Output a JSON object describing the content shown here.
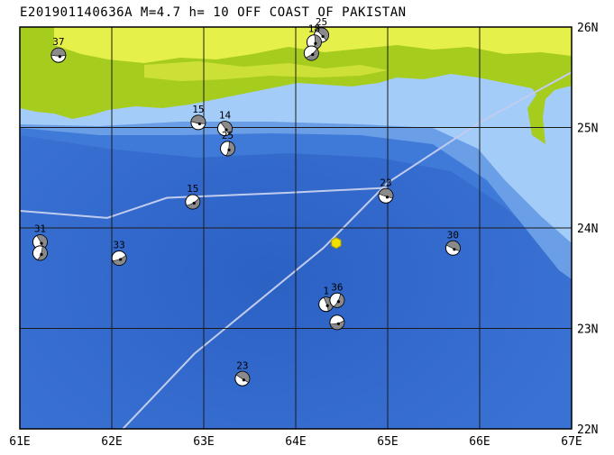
{
  "title": "E201901140636A M=4.7 h= 10 OFF COAST OF PAKISTAN",
  "extent": {
    "lon_min": 61,
    "lon_max": 67,
    "lat_min": 22,
    "lat_max": 26
  },
  "lon_ticks": [
    {
      "value": 61,
      "label": "61E"
    },
    {
      "value": 62,
      "label": "62E"
    },
    {
      "value": 63,
      "label": "63E"
    },
    {
      "value": 64,
      "label": "64E"
    },
    {
      "value": 65,
      "label": "65E"
    },
    {
      "value": 66,
      "label": "66E"
    },
    {
      "value": 67,
      "label": "67E"
    }
  ],
  "lat_ticks": [
    {
      "value": 26,
      "label": "26N"
    },
    {
      "value": 25,
      "label": "25N"
    },
    {
      "value": 24,
      "label": "24N"
    },
    {
      "value": 23,
      "label": "23N"
    },
    {
      "value": 22,
      "label": "22N"
    }
  ],
  "colors": {
    "deep_ocean": "#2d64c8",
    "ocean_mid": "#3f7ad8",
    "shelf": "#6a9ee6",
    "shallow": "#a4ccf8",
    "land_low": "#a6cc1e",
    "land_high": "#e6f04a",
    "grid": "#1a1a1a",
    "plate_boundary": "#c0ccee",
    "epicenter": "#f2e000"
  },
  "epicenter": {
    "lon": 64.44,
    "lat": 23.85,
    "icon": "hexagon-icon"
  },
  "plate_boundary": [
    [
      61,
      24.17
    ],
    [
      61.95,
      24.1
    ],
    [
      62.6,
      24.3
    ],
    [
      63.9,
      24.35
    ],
    [
      65.0,
      24.4
    ]
  ],
  "plate_boundary_2": [
    [
      62.12,
      22.0
    ],
    [
      62.9,
      22.75
    ],
    [
      64.3,
      23.8
    ],
    [
      65.0,
      24.45
    ],
    [
      66.0,
      25.05
    ],
    [
      67.0,
      25.55
    ]
  ],
  "events": [
    {
      "label": "37",
      "lon": 61.42,
      "lat": 25.72
    },
    {
      "label": "25",
      "lon": 64.28,
      "lat": 25.92
    },
    {
      "label": "18",
      "lon": 64.2,
      "lat": 25.85
    },
    {
      "label": "",
      "lon": 64.17,
      "lat": 25.74
    },
    {
      "label": "15",
      "lon": 62.94,
      "lat": 25.05
    },
    {
      "label": "14",
      "lon": 63.23,
      "lat": 24.99
    },
    {
      "label": "25",
      "lon": 63.26,
      "lat": 24.79
    },
    {
      "label": "15",
      "lon": 62.88,
      "lat": 24.26
    },
    {
      "label": "23",
      "lon": 64.98,
      "lat": 24.32
    },
    {
      "label": "31",
      "lon": 61.22,
      "lat": 23.86
    },
    {
      "label": "",
      "lon": 61.22,
      "lat": 23.75
    },
    {
      "label": "33",
      "lon": 62.08,
      "lat": 23.7
    },
    {
      "label": "30",
      "lon": 65.71,
      "lat": 23.8
    },
    {
      "label": "1",
      "lon": 64.33,
      "lat": 23.24
    },
    {
      "label": "36",
      "lon": 64.45,
      "lat": 23.28
    },
    {
      "label": "",
      "lon": 64.45,
      "lat": 23.06
    },
    {
      "label": "23",
      "lon": 63.42,
      "lat": 22.5
    }
  ]
}
